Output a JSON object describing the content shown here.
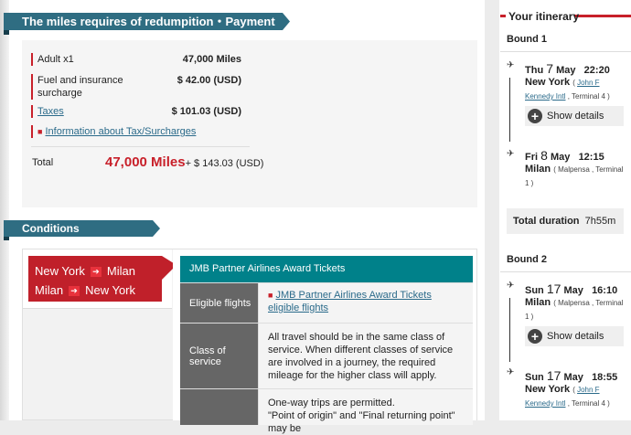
{
  "payment": {
    "title": "The miles requires of redumpition・Payment amount",
    "rows": [
      {
        "label": "Adult x1",
        "value": "47,000 Miles"
      },
      {
        "label": "Fuel and insurance surcharge",
        "value": "$ 42.00 (USD)"
      },
      {
        "label": "Taxes",
        "value": "$ 101.03 (USD)"
      }
    ],
    "info_link": "Information about Tax/Surcharges",
    "total_label": "Total",
    "total_miles": "47,000 Miles",
    "total_cash": "+ $ 143.03 (USD)"
  },
  "conditions": {
    "title": "Conditions",
    "routes": [
      {
        "from": "New York",
        "to": "Milan"
      },
      {
        "from": "Milan",
        "to": "New York"
      }
    ],
    "table_title": "JMB Partner Airlines Award Tickets",
    "rows": [
      {
        "label": "Eligible flights",
        "value": "JMB Partner Airlines Award Tickets eligible flights"
      },
      {
        "label": "Class of service",
        "value": "All travel should be in the same class of service. When different classes of service are involved in a journey, the required mileage for the higher class will apply."
      },
      {
        "label": "",
        "value": "One-way trips are permitted.\n\"Point of origin\" and \"Final returning point\" may be"
      }
    ]
  },
  "itinerary": {
    "title": "Your itinerary",
    "show_details": "Show details",
    "total_duration_label": "Total duration",
    "bounds": [
      {
        "label": "Bound 1",
        "dep": {
          "day": "Thu",
          "date": "7",
          "month": "May",
          "time": "22:20",
          "city": "New York",
          "airport": "John F Kennedy Intl",
          "terminal": "Terminal 4"
        },
        "arr": {
          "day": "Fri",
          "date": "8",
          "month": "May",
          "time": "12:15",
          "city": "Milan",
          "airport": "Malpensa",
          "terminal": "Terminal 1"
        },
        "duration": "7h55m"
      },
      {
        "label": "Bound 2",
        "dep": {
          "day": "Sun",
          "date": "17",
          "month": "May",
          "time": "16:10",
          "city": "Milan",
          "airport": "Malpensa",
          "terminal": "Terminal 1"
        },
        "arr": {
          "day": "Sun",
          "date": "17",
          "month": "May",
          "time": "18:55",
          "city": "New York",
          "airport": "John F Kennedy Intl",
          "terminal": "Terminal 4"
        }
      }
    ]
  },
  "colors": {
    "banner": "#2f6d82",
    "accent_red": "#c8202a",
    "teal": "#00818a"
  }
}
